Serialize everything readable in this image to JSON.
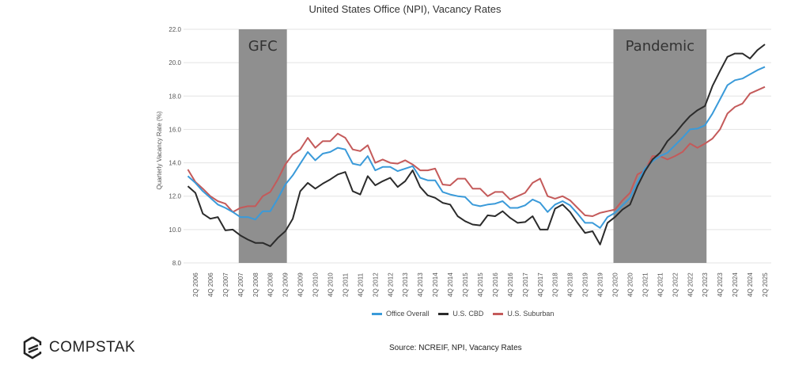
{
  "chart_data": {
    "type": "line",
    "title": "United States Office (NPI), Vacancy Rates",
    "ylabel": "Quarterly Vacancy Rate (%)",
    "xlabel": "",
    "ylim": [
      8.0,
      22.0
    ],
    "yticks": [
      "8.0",
      "10.0",
      "12.0",
      "14.0",
      "16.0",
      "18.0",
      "20.0",
      "22.0"
    ],
    "grid": true,
    "legend_position": "bottom",
    "categories": [
      "1Q 2006",
      "2Q 2006",
      "3Q 2006",
      "4Q 2006",
      "1Q 2007",
      "2Q 2007",
      "3Q 2007",
      "4Q 2007",
      "1Q 2008",
      "2Q 2008",
      "3Q 2008",
      "4Q 2008",
      "1Q 2009",
      "2Q 2009",
      "3Q 2009",
      "4Q 2009",
      "1Q 2010",
      "2Q 2010",
      "3Q 2010",
      "4Q 2010",
      "1Q 2011",
      "2Q 2011",
      "3Q 2011",
      "4Q 2011",
      "1Q 2012",
      "2Q 2012",
      "3Q 2012",
      "4Q 2012",
      "1Q 2013",
      "2Q 2013",
      "3Q 2013",
      "4Q 2013",
      "1Q 2014",
      "2Q 2014",
      "3Q 2014",
      "4Q 2014",
      "1Q 2015",
      "2Q 2015",
      "3Q 2015",
      "4Q 2015",
      "1Q 2016",
      "2Q 2016",
      "3Q 2016",
      "4Q 2016",
      "1Q 2017",
      "2Q 2017",
      "3Q 2017",
      "4Q 2017",
      "1Q 2018",
      "2Q 2018",
      "3Q 2018",
      "4Q 2018",
      "1Q 2019",
      "2Q 2019",
      "3Q 2019",
      "4Q 2019",
      "1Q 2020",
      "2Q 2020",
      "3Q 2020",
      "4Q 2020",
      "1Q 2021",
      "2Q 2021",
      "3Q 2021",
      "4Q 2021",
      "1Q 2022",
      "2Q 2022",
      "3Q 2022",
      "4Q 2022",
      "1Q 2023",
      "2Q 2023",
      "3Q 2023",
      "4Q 2023",
      "1Q 2024",
      "2Q 2024",
      "3Q 2024",
      "4Q 2024",
      "1Q 2025",
      "2Q 2025"
    ],
    "series": [
      {
        "name": "Office Overall",
        "color": "#3a9ad9",
        "values": [
          13.2,
          12.8,
          12.3,
          11.9,
          11.5,
          11.3,
          11.05,
          10.75,
          10.75,
          10.6,
          11.1,
          11.1,
          11.85,
          12.7,
          13.25,
          13.95,
          14.65,
          14.15,
          14.55,
          14.65,
          14.9,
          14.8,
          13.95,
          13.85,
          14.4,
          13.55,
          13.75,
          13.75,
          13.5,
          13.65,
          13.8,
          13.1,
          12.95,
          12.95,
          12.25,
          12.1,
          12.0,
          11.95,
          11.5,
          11.4,
          11.5,
          11.55,
          11.7,
          11.3,
          11.3,
          11.45,
          11.8,
          11.6,
          11.05,
          11.5,
          11.7,
          11.45,
          10.95,
          10.4,
          10.4,
          10.1,
          10.75,
          11.0,
          11.45,
          11.9,
          12.85,
          13.65,
          14.1,
          14.4,
          14.6,
          15.05,
          15.5,
          16.0,
          16.05,
          16.25,
          16.95,
          17.8,
          18.65,
          18.95,
          19.05,
          19.3,
          19.55,
          19.75
        ]
      },
      {
        "name": "U.S. CBD",
        "color": "#2b2b2b",
        "values": [
          12.6,
          12.2,
          10.95,
          10.65,
          10.75,
          9.95,
          10.0,
          9.65,
          9.4,
          9.2,
          9.2,
          9.0,
          9.5,
          9.9,
          10.65,
          12.3,
          12.8,
          12.45,
          12.75,
          13.0,
          13.3,
          13.45,
          12.3,
          12.1,
          13.2,
          12.65,
          12.9,
          13.1,
          12.55,
          12.9,
          13.55,
          12.55,
          12.05,
          11.9,
          11.6,
          11.5,
          10.8,
          10.5,
          10.3,
          10.25,
          10.85,
          10.8,
          11.1,
          10.7,
          10.4,
          10.45,
          10.8,
          10.0,
          10.0,
          11.25,
          11.5,
          11.05,
          10.4,
          9.8,
          9.9,
          9.1,
          10.4,
          10.75,
          11.2,
          11.5,
          12.6,
          13.5,
          14.2,
          14.6,
          15.3,
          15.75,
          16.3,
          16.8,
          17.15,
          17.4,
          18.6,
          19.5,
          20.35,
          20.55,
          20.55,
          20.25,
          20.75,
          21.1
        ]
      },
      {
        "name": "U.S. Suburban",
        "color": "#c45a5a",
        "values": [
          13.6,
          12.85,
          12.45,
          12.0,
          11.7,
          11.55,
          11.05,
          11.3,
          11.4,
          11.4,
          12.0,
          12.25,
          13.0,
          13.9,
          14.5,
          14.8,
          15.5,
          14.9,
          15.3,
          15.3,
          15.75,
          15.5,
          14.8,
          14.7,
          15.05,
          14.0,
          14.2,
          14.0,
          13.95,
          14.15,
          13.9,
          13.55,
          13.55,
          13.65,
          12.7,
          12.65,
          13.05,
          13.05,
          12.45,
          12.45,
          12.0,
          12.25,
          12.25,
          11.8,
          12.0,
          12.2,
          12.8,
          13.05,
          12.0,
          11.85,
          12.0,
          11.75,
          11.3,
          10.85,
          10.8,
          11.0,
          11.1,
          11.2,
          11.75,
          12.2,
          13.3,
          13.55,
          14.4,
          14.4,
          14.2,
          14.4,
          14.65,
          15.15,
          14.9,
          15.15,
          15.45,
          16.0,
          16.95,
          17.35,
          17.55,
          18.15,
          18.35,
          18.55
        ]
      }
    ],
    "annotations": [
      {
        "label": "GFC",
        "start": "4Q 2007",
        "end": "2Q 2009",
        "color": "#8f8f8f"
      },
      {
        "label": "Pandemic",
        "start": "2Q 2020",
        "end": "2Q 2023",
        "color": "#8f8f8f"
      }
    ]
  },
  "legend": {
    "items": [
      "Office Overall",
      "U.S. CBD",
      "U.S. Suburban"
    ]
  },
  "brand": {
    "name": "COMPSTAK"
  },
  "source": "Source: NCREIF, NPI, Vacancy Rates"
}
